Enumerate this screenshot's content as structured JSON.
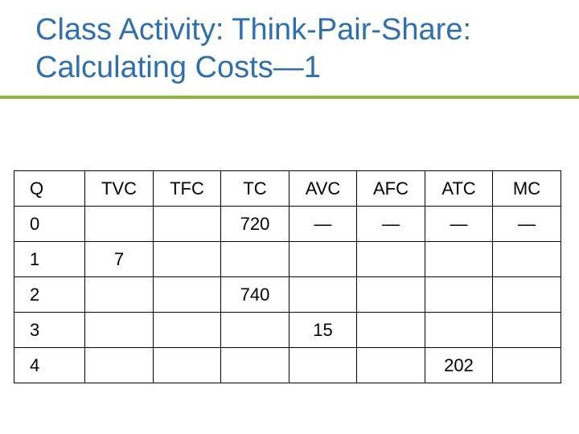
{
  "slide": {
    "title_line1": "Class Activity: Think-Pair-Share:",
    "title_line2": "Calculating Costs—1"
  },
  "table": {
    "headers": [
      "Q",
      "TVC",
      "TFC",
      "TC",
      "AVC",
      "AFC",
      "ATC",
      "MC"
    ],
    "rows": [
      [
        "0",
        "",
        "",
        "720",
        "—",
        "—",
        "—",
        "—"
      ],
      [
        "1",
        "7",
        "",
        "",
        "",
        "",
        "",
        ""
      ],
      [
        "2",
        "",
        "",
        "740",
        "",
        "",
        "",
        ""
      ],
      [
        "3",
        "",
        "",
        "",
        "15",
        "",
        "",
        ""
      ],
      [
        "4",
        "",
        "",
        "",
        "",
        "",
        "202",
        ""
      ]
    ]
  },
  "colors": {
    "title": "#2e6fb0",
    "rule": "#8cb63c"
  }
}
